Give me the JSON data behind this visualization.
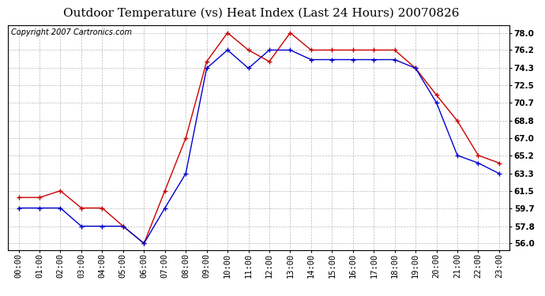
{
  "title": "Outdoor Temperature (vs) Heat Index (Last 24 Hours) 20070826",
  "copyright": "Copyright 2007 Cartronics.com",
  "x_labels": [
    "00:00",
    "01:00",
    "02:00",
    "03:00",
    "04:00",
    "05:00",
    "06:00",
    "07:00",
    "08:00",
    "09:00",
    "10:00",
    "11:00",
    "12:00",
    "13:00",
    "14:00",
    "15:00",
    "16:00",
    "17:00",
    "18:00",
    "19:00",
    "20:00",
    "21:00",
    "22:00",
    "23:00"
  ],
  "y_ticks": [
    56.0,
    57.8,
    59.7,
    61.5,
    63.3,
    65.2,
    67.0,
    68.8,
    70.7,
    72.5,
    74.3,
    76.2,
    78.0
  ],
  "ylim": [
    55.3,
    78.8
  ],
  "temp_red": [
    60.8,
    60.8,
    61.5,
    59.7,
    59.7,
    57.8,
    56.0,
    61.5,
    67.0,
    75.0,
    78.0,
    76.2,
    75.0,
    78.0,
    76.2,
    76.2,
    76.2,
    76.2,
    76.2,
    74.3,
    71.5,
    68.8,
    65.2,
    64.4
  ],
  "heat_blue": [
    59.7,
    59.7,
    59.7,
    57.8,
    57.8,
    57.8,
    56.0,
    59.7,
    63.3,
    74.3,
    76.2,
    74.3,
    76.2,
    76.2,
    75.2,
    75.2,
    75.2,
    75.2,
    75.2,
    74.3,
    70.7,
    65.2,
    64.4,
    63.3
  ],
  "red_color": "#cc0000",
  "blue_color": "#0000cc",
  "bg_color": "#ffffff",
  "grid_color": "#bbbbbb",
  "title_fontsize": 11,
  "copyright_fontsize": 7,
  "tick_fontsize": 7.5,
  "ytick_fontsize": 7.5
}
